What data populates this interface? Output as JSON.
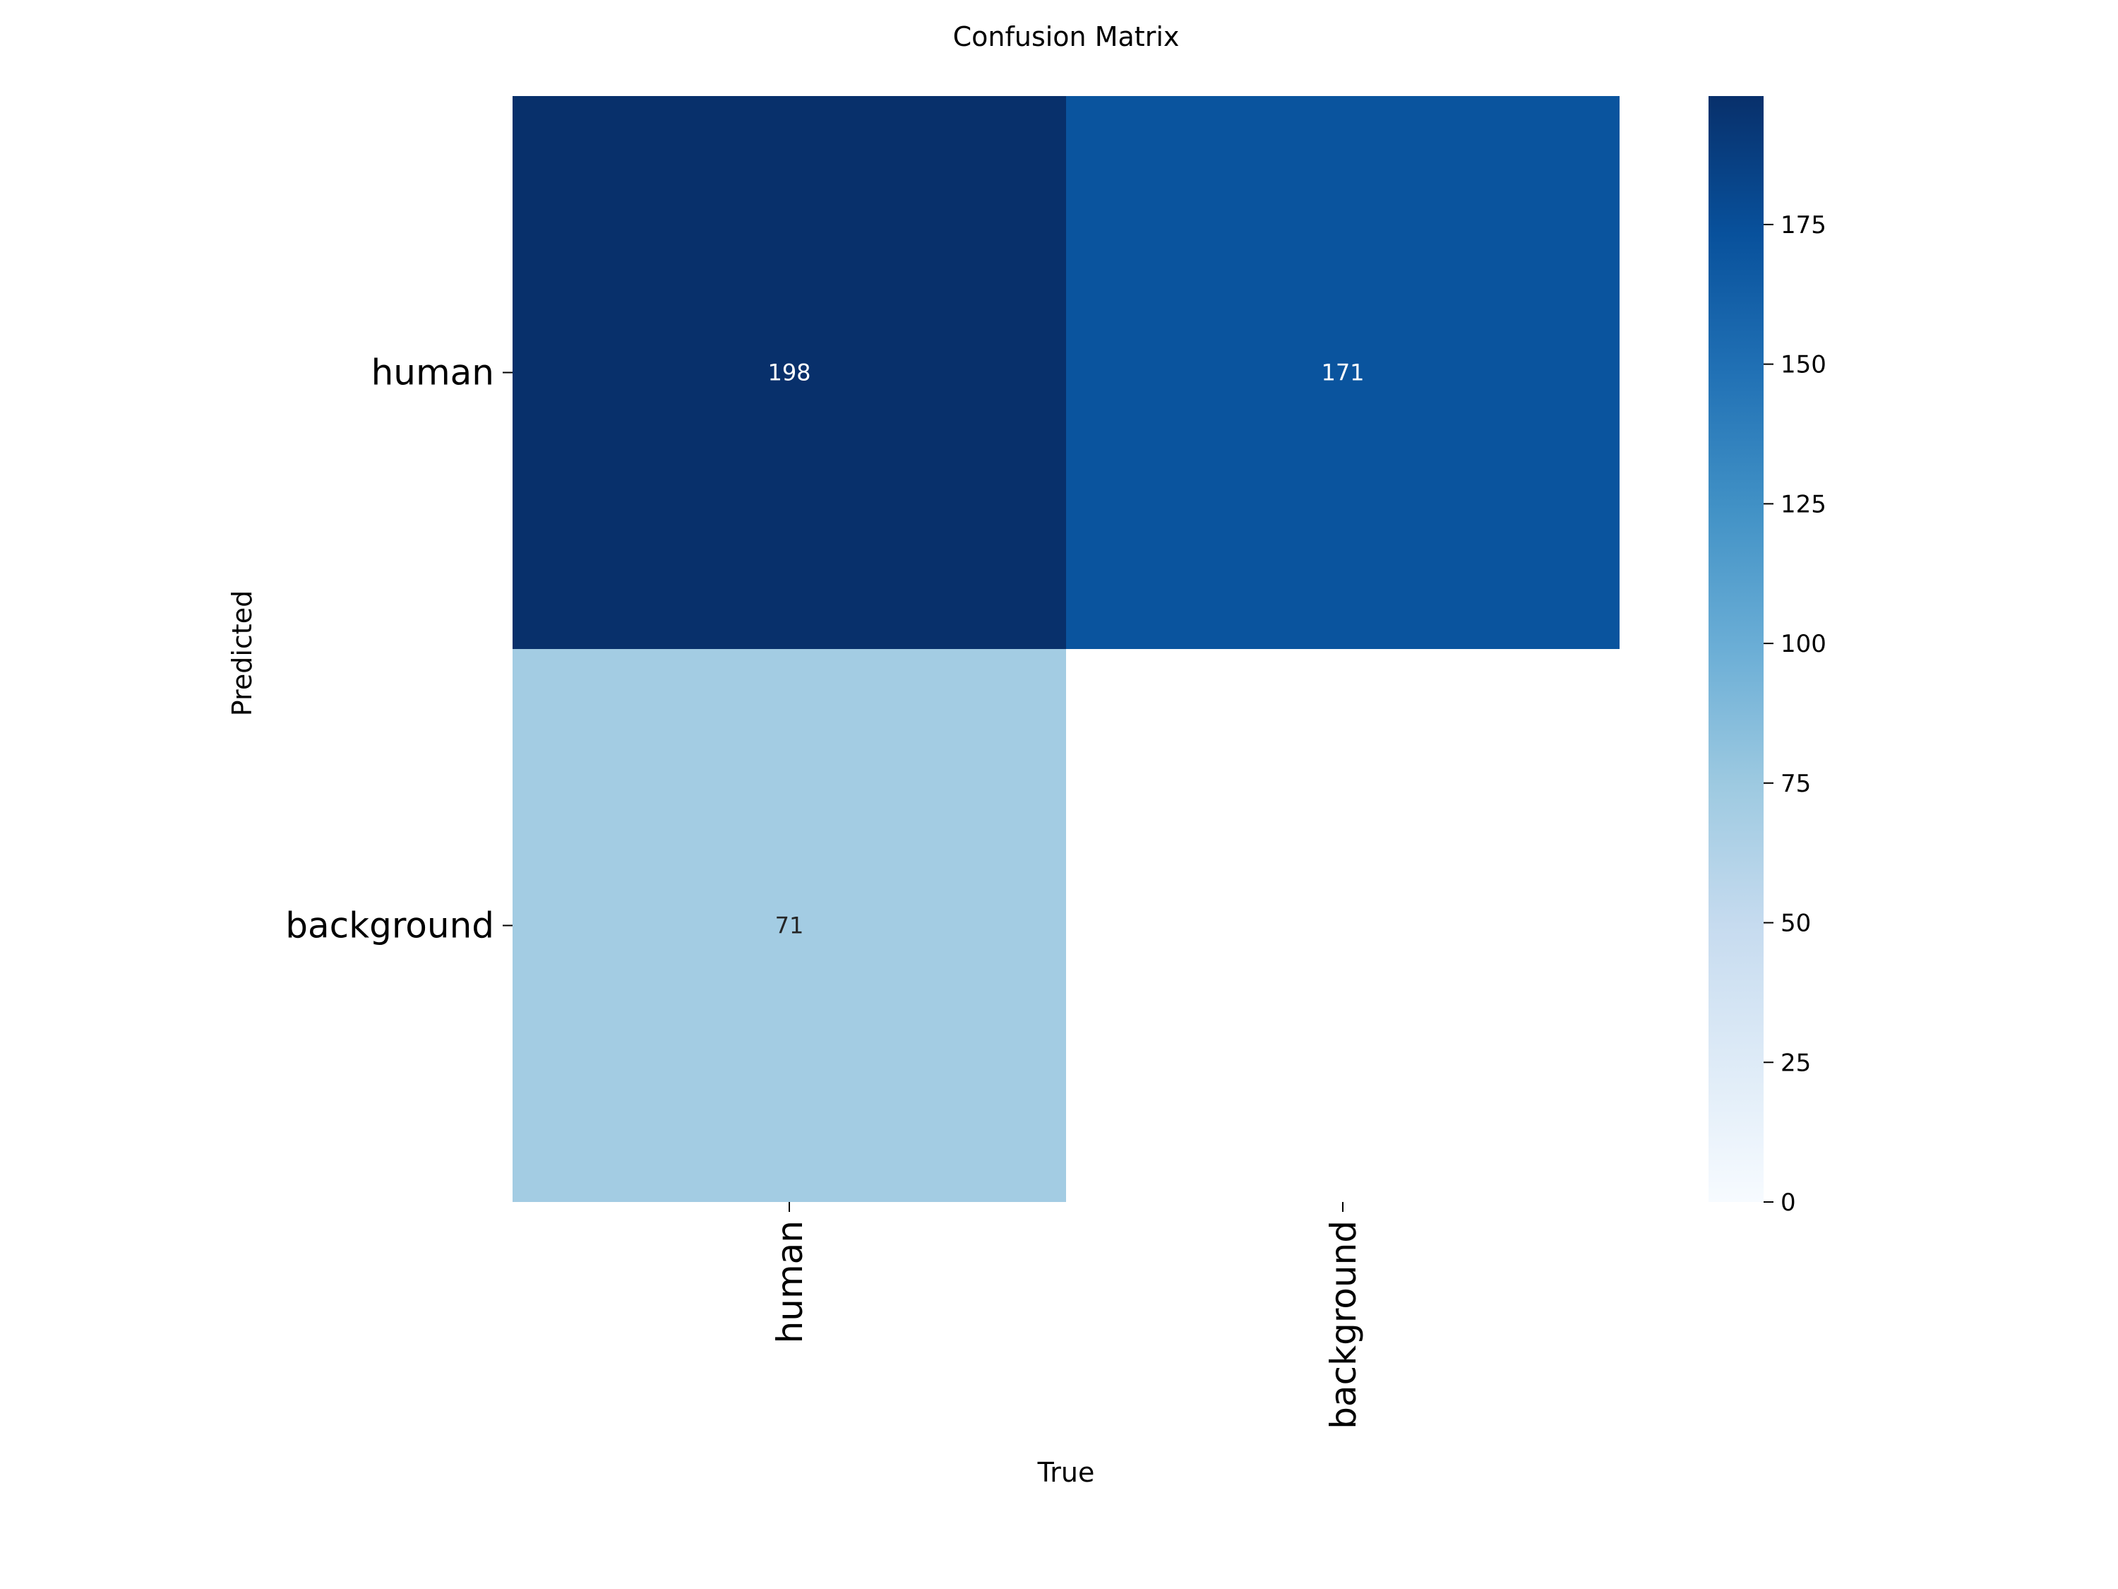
{
  "chart_data": {
    "type": "heatmap",
    "title": "Confusion Matrix",
    "xlabel": "True",
    "ylabel": "Predicted",
    "x_categories": [
      "human",
      "background"
    ],
    "y_categories": [
      "human",
      "background"
    ],
    "values": [
      [
        198,
        171
      ],
      [
        71,
        null
      ]
    ],
    "colormap": "Blues",
    "colorbar": {
      "range": [
        0,
        198
      ],
      "ticks": [
        0,
        25,
        50,
        75,
        100,
        125,
        150,
        175
      ]
    },
    "colors": {
      "low": "#f7fbff",
      "high": "#08306b"
    }
  }
}
